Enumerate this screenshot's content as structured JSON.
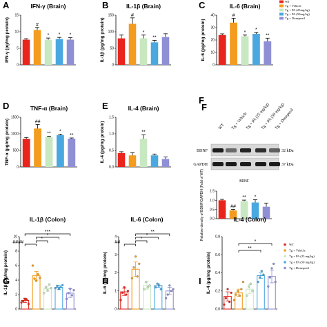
{
  "legend_top": [
    {
      "label": "WT",
      "color": "#e8241c"
    },
    {
      "label": "Tg + Vehicle",
      "color": "#f39c1f"
    },
    {
      "label": "Tg + PA (25mg/kg)",
      "color": "#c7e8c0"
    },
    {
      "label": "Tg + PA (50mg/kg)",
      "color": "#4aa8e0"
    },
    {
      "label": "Tg + Donepezil",
      "color": "#8f8fd6"
    }
  ],
  "legend_bottom": [
    {
      "label": "WT",
      "color": "#e8241c"
    },
    {
      "label": "Tg + Vehicle",
      "color": "#f39c1f"
    },
    {
      "label": "Tg + PA (25 mg/kg)",
      "color": "#c7e8c0"
    },
    {
      "label": "Tg + PA (50 mg/kg)",
      "color": "#4aa8e0"
    },
    {
      "label": "Tg + Donepezil",
      "color": "#8f8fd6"
    }
  ],
  "western_blot": {
    "panel": "F",
    "lanes": [
      "WT",
      "Tg + Vehicle",
      "Tg + PA (25 mg/kg)",
      "Tg + PA (50 mg/kg)",
      "Tg + Donepezil"
    ],
    "rows": [
      {
        "name": "BDNF",
        "size": "32 kDa"
      },
      {
        "name": "GAPDH",
        "size": "37 kDa"
      }
    ]
  },
  "chart_data": [
    {
      "panel": "A",
      "type": "bar",
      "title": "IFN-γ (Brain)",
      "ylabel": "IFN-γ (pg/mg protein)",
      "ylim": [
        0,
        15
      ],
      "yticks": [
        "0",
        "5",
        "10",
        "15"
      ],
      "values": [
        7.6,
        10.5,
        7.6,
        7.8,
        7.6
      ],
      "errors": [
        0.3,
        0.8,
        0.5,
        0.5,
        0.6
      ],
      "sig": [
        "",
        "#",
        "*",
        "*",
        "*"
      ]
    },
    {
      "panel": "B",
      "type": "bar",
      "title": "IL-1β (Brain)",
      "ylabel": "IL-1β (pg/mg protein)",
      "ylim": [
        0,
        150
      ],
      "yticks": [
        "0",
        "50",
        "100",
        "150"
      ],
      "values": [
        80,
        124,
        80,
        68,
        84
      ],
      "errors": [
        10,
        18,
        10,
        6,
        10
      ],
      "sig": [
        "",
        "#",
        "*",
        "**",
        ""
      ]
    },
    {
      "panel": "C",
      "type": "bar",
      "title": "IL-6 (Brain)",
      "ylabel": "IL-6 (pg/mg protein)",
      "ylim": [
        0,
        40
      ],
      "yticks": [
        "0",
        "10",
        "20",
        "30",
        "40"
      ],
      "values": [
        24,
        34,
        23,
        25,
        19
      ],
      "errors": [
        1,
        3.5,
        1,
        1,
        2.5
      ],
      "sig": [
        "",
        "#",
        "*",
        "*",
        "**"
      ]
    },
    {
      "panel": "D",
      "type": "bar",
      "title": "TNF-α (Brain)",
      "ylabel": "TNF-α (pg/mg protein)",
      "ylim": [
        0,
        1500
      ],
      "yticks": [
        "0",
        "500",
        "1000",
        "1500"
      ],
      "values": [
        850,
        1160,
        910,
        960,
        855
      ],
      "errors": [
        40,
        120,
        20,
        30,
        20
      ],
      "sig": [
        "",
        "##",
        "**",
        "*",
        "**"
      ]
    },
    {
      "panel": "E",
      "type": "bar",
      "title": "IL-4 (Brain)",
      "ylabel": "IL-4 (pg/mg protein)",
      "ylim": [
        0,
        1.5
      ],
      "yticks": [
        "0.0",
        "0.5",
        "1.0",
        "1.5"
      ],
      "values": [
        0.42,
        0.35,
        0.85,
        0.35,
        0.24
      ],
      "errors": [
        0.04,
        0.08,
        0.12,
        0.04,
        0.06
      ],
      "sig": [
        "",
        "",
        "**",
        "",
        ""
      ]
    },
    {
      "panel": "F",
      "type": "bar",
      "title": "BDNF",
      "ylabel": "Relative density of BDNF/GAPDH (Fold of WT)",
      "ylim": [
        0,
        1.5
      ],
      "yticks": [
        "0.0",
        "0.5",
        "1.0",
        "1.5"
      ],
      "values": [
        1.0,
        0.45,
        0.95,
        0.88,
        0.65
      ],
      "errors": [
        0.05,
        0.06,
        0.06,
        0.15,
        0.2
      ],
      "sig": [
        "",
        "##",
        "**",
        "*",
        ""
      ]
    },
    {
      "panel": "G",
      "type": "scatter-bar",
      "title": "IL-1β (Colon)",
      "ylabel": "IL-1β (pg/mg protein)",
      "ylim": [
        0,
        10
      ],
      "yticks": [
        "0",
        "2",
        "4",
        "6",
        "8",
        "10"
      ],
      "values": [
        1.2,
        4.6,
        2.8,
        3.0,
        2.2
      ],
      "errors": [
        0.3,
        0.6,
        0.4,
        0.3,
        0.6
      ],
      "points": [
        [
          0.9,
          1.1,
          1.4,
          1.3,
          0.7
        ],
        [
          6.0,
          4.2,
          3.9,
          4.8,
          4.3
        ],
        [
          2.2,
          3.0,
          2.6,
          3.4,
          2.9
        ],
        [
          2.9,
          3.2,
          2.8,
          3.0,
          3.3
        ],
        [
          1.4,
          2.2,
          2.8,
          1.9,
          2.6
        ]
      ],
      "brackets": [
        {
          "from": 1,
          "to": 5,
          "label": "***"
        },
        {
          "from": 2,
          "to": 4,
          "label": "*"
        },
        {
          "from": 2,
          "to": 3,
          "label": "*"
        },
        {
          "from": 1,
          "to": 2,
          "label": "####"
        }
      ]
    },
    {
      "panel": "H",
      "type": "scatter-bar",
      "title": "IL-6 (Colon)",
      "ylabel": "IL-6 (pg/mg protein)",
      "ylim": [
        0,
        4
      ],
      "yticks": [
        "0",
        "1",
        "2",
        "3",
        "4"
      ],
      "values": [
        0.95,
        2.2,
        1.3,
        1.3,
        1.0
      ],
      "errors": [
        0.2,
        0.4,
        0.2,
        0.1,
        0.2
      ],
      "points": [
        [
          0.5,
          0.9,
          1.2,
          0.8,
          1.0
        ],
        [
          1.7,
          2.3,
          2.9,
          1.8,
          2.5
        ],
        [
          1.1,
          1.5,
          1.2,
          1.3
        ],
        [
          1.2,
          1.4,
          1.3,
          1.1
        ],
        [
          0.6,
          0.8,
          1.3,
          1.0,
          1.1
        ]
      ],
      "brackets": [
        {
          "from": 2,
          "to": 5,
          "label": "**"
        },
        {
          "from": 2,
          "to": 4,
          "label": "*"
        },
        {
          "from": 2,
          "to": 3,
          "label": "*"
        },
        {
          "from": 1,
          "to": 2,
          "label": "##"
        }
      ]
    },
    {
      "panel": "I",
      "type": "scatter-bar",
      "title": "IL-4 (Colon)",
      "ylabel": "IL-4 (pg/mg protein)",
      "ylim": [
        0,
        0.8
      ],
      "yticks": [
        "0.0",
        "0.2",
        "0.4",
        "0.6",
        "0.8"
      ],
      "values": [
        0.14,
        0.18,
        0.22,
        0.37,
        0.36
      ],
      "errors": [
        0.05,
        0.04,
        0.05,
        0.03,
        0.07
      ],
      "points": [
        [
          0.05,
          0.12,
          0.22,
          0.08,
          0.18
        ],
        [
          0.1,
          0.16,
          0.2,
          0.15,
          0.22,
          0.3
        ],
        [
          0.15,
          0.25,
          0.28,
          0.2
        ],
        [
          0.3,
          0.35,
          0.42,
          0.38
        ],
        [
          0.25,
          0.35,
          0.45,
          0.5,
          0.3
        ]
      ],
      "brackets": [
        {
          "from": 2,
          "to": 5,
          "label": "*"
        },
        {
          "from": 2,
          "to": 4,
          "label": "**"
        }
      ]
    }
  ]
}
